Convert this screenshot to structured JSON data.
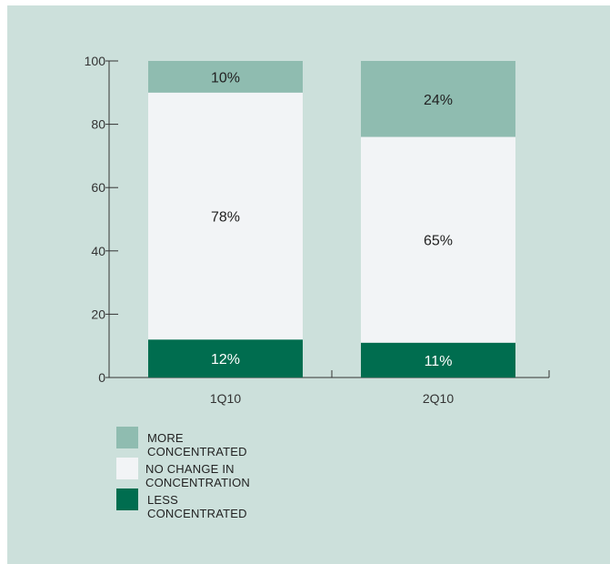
{
  "chart_data": {
    "type": "bar",
    "stacked": true,
    "title": "",
    "xlabel": "",
    "ylabel": "",
    "ylim": [
      0,
      100
    ],
    "yticks": [
      0,
      20,
      40,
      60,
      80,
      100
    ],
    "categories": [
      "1Q10",
      "2Q10"
    ],
    "series": [
      {
        "name": "LESS CONCENTRATED",
        "values": [
          12,
          11
        ],
        "labels": [
          "12%",
          "11%"
        ],
        "color": "#006d4f",
        "label_color": "#ffffff"
      },
      {
        "name": "NO CHANGE IN CONCENTRATION",
        "values": [
          78,
          65
        ],
        "labels": [
          "78%",
          "65%"
        ],
        "color": "#f2f4f6",
        "label_color": "#222222"
      },
      {
        "name": "MORE CONCENTRATED",
        "values": [
          10,
          24
        ],
        "labels": [
          "10%",
          "24%"
        ],
        "color": "#8fbcb0",
        "label_color": "#222222"
      }
    ],
    "legend_placement": "bottom-left",
    "grid": false
  },
  "legend": {
    "items": [
      {
        "label": "MORE CONCENTRATED",
        "color": "#8fbcb0"
      },
      {
        "label": "NO CHANGE IN CONCENTRATION",
        "color": "#f2f4f6"
      },
      {
        "label": "LESS CONCENTRATED",
        "color": "#006d4f"
      }
    ]
  },
  "colors": {
    "background": "#cce0db",
    "axis": "#333333"
  }
}
